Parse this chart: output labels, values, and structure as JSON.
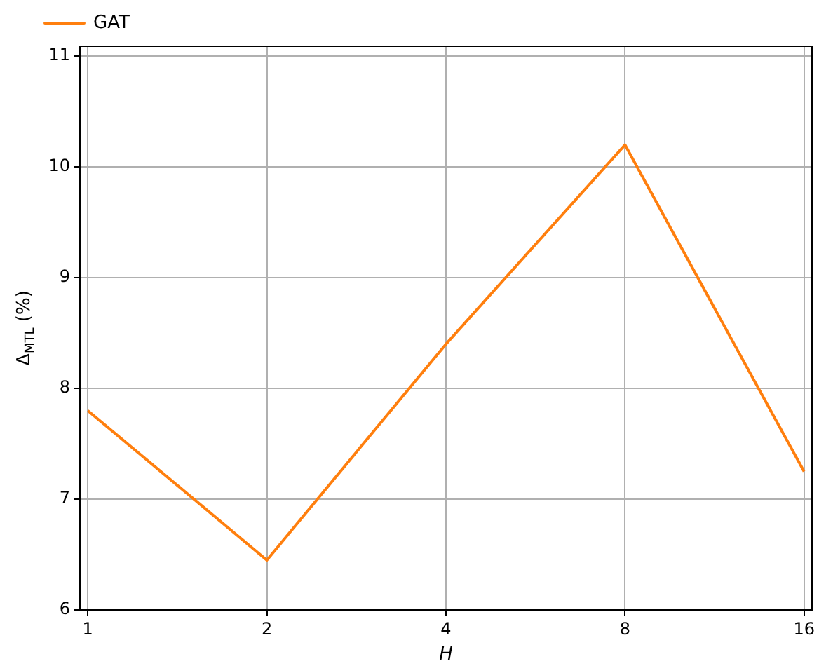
{
  "chart_data": {
    "type": "line",
    "xlabel": "H",
    "ylabel": "Δ$_{MTL}$ (%)",
    "x": [
      1,
      2,
      4,
      8,
      16
    ],
    "log": "x",
    "xlim": [
      0.97,
      16.5
    ],
    "xticks": [
      1,
      2,
      4,
      8,
      16
    ],
    "ylim": [
      6,
      11.09
    ],
    "yticks": [
      6,
      7,
      8,
      9,
      10,
      11
    ],
    "grid": true,
    "legend": "top left",
    "series": [
      {
        "name": "GAT",
        "color": "#ff7f0e",
        "values": [
          7.8,
          6.45,
          8.4,
          10.2,
          7.25
        ]
      }
    ]
  }
}
